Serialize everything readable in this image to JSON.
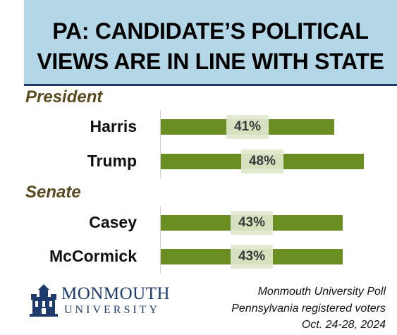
{
  "header": {
    "title_line1": "PA: CANDIDATE’S POLITICAL",
    "title_line2": "VIEWS ARE IN LINE WITH STATE"
  },
  "chart_data": {
    "type": "bar",
    "orientation": "horizontal",
    "title": "PA: CANDIDATE’S POLITICAL VIEWS ARE IN LINE WITH STATE",
    "groups": [
      {
        "label": "President",
        "categories": [
          "Harris",
          "Trump"
        ],
        "values": [
          41,
          48
        ],
        "value_labels": [
          "41%",
          "48%"
        ]
      },
      {
        "label": "Senate",
        "categories": [
          "Casey",
          "McCormick"
        ],
        "values": [
          43,
          43
        ],
        "value_labels": [
          "43%",
          "43%"
        ]
      }
    ],
    "unit": "%",
    "xlim": [
      0,
      50
    ],
    "grid": false,
    "legend": "none",
    "colors": {
      "bar": "#6b8e23",
      "label_box": "#e0e9cd",
      "title_box": "#b4d7e7",
      "section_label": "#5a4a1f"
    }
  },
  "logo": {
    "name": "MONMOUTH",
    "sub": "UNIVERSITY"
  },
  "source": {
    "line1": "Monmouth University Poll",
    "line2": "Pennsylvania registered voters",
    "line3": "Oct. 24-28, 2024"
  }
}
